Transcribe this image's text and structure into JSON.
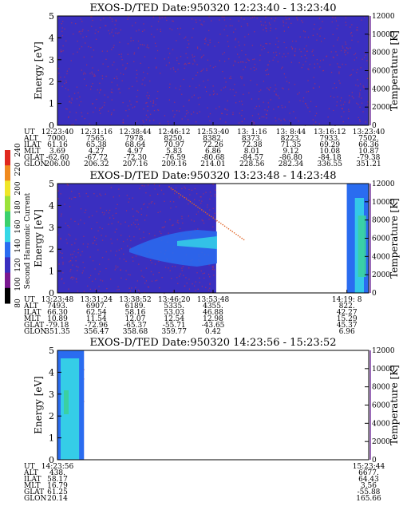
{
  "chart_data": [
    {
      "type": "heatmap",
      "title": "EXOS-D/TED   Date:950320   12:23:40 - 13:23:40",
      "ylabel": "Energy [eV]",
      "ylabel_right": "Temperature [K]",
      "ylim": [
        0,
        5
      ],
      "ylim_right": [
        0,
        12000
      ],
      "yticks": [
        "0",
        "1",
        "2",
        "3",
        "4",
        "5"
      ],
      "yticks_right": [
        "0",
        "2000",
        "4000",
        "6000",
        "8000",
        "10000",
        "12000"
      ],
      "coverage": [
        [
          0,
          1
        ]
      ],
      "table": {
        "rows": [
          "UT",
          "ALT",
          "ILAT",
          "MLT",
          "GLAT",
          "GLON"
        ],
        "columns": [
          [
            "12:23:40",
            "7000.",
            "61.16",
            "3.69",
            "-62.60",
            "206.00"
          ],
          [
            "12:31:16",
            "7565.",
            "65.38",
            "4.27",
            "-67.72",
            "206.32"
          ],
          [
            "12:38:44",
            "7978.",
            "68.64",
            "4.97",
            "-72.30",
            "207.16"
          ],
          [
            "12:46:12",
            "8250.",
            "70.97",
            "5.83",
            "-76.59",
            "209.16"
          ],
          [
            "12:53:40",
            "8382.",
            "72.26",
            "6.86",
            "-80.68",
            "214.01"
          ],
          [
            "13: 1:16",
            "8373.",
            "72.38",
            "8.01",
            "-84.57",
            "228.56"
          ],
          [
            "13: 8:44",
            "8223.",
            "71.35",
            "9.12",
            "-86.80",
            "282.34"
          ],
          [
            "13:16:12",
            "7933.",
            "69.29",
            "10.08",
            "-84.18",
            "336.55"
          ],
          [
            "13:23:40",
            "7502.",
            "66.36",
            "10.87",
            "-79.38",
            "351.21"
          ]
        ]
      }
    },
    {
      "type": "heatmap",
      "title": "EXOS-D/TED   Date:950320   13:23:48 - 14:23:48",
      "ylabel": "Energy [eV]",
      "ylabel_right": "Temperature [K]",
      "colorbar_label": "Second Harmonic Current",
      "colorbar_ticks": [
        "80",
        "100",
        "120",
        "140",
        "160",
        "180",
        "200",
        "220",
        "240"
      ],
      "ylim": [
        0,
        5
      ],
      "ylim_right": [
        0,
        12000
      ],
      "yticks": [
        "0",
        "1",
        "2",
        "3",
        "4",
        "5"
      ],
      "yticks_right": [
        "0",
        "2000",
        "4000",
        "6000",
        "8000",
        "10000",
        "12000"
      ],
      "coverage": [
        [
          0,
          0.51
        ],
        [
          0.93,
          1
        ]
      ],
      "table": {
        "rows": [
          "UT",
          "ALT",
          "ILAT",
          "MLT",
          "GLAT",
          "GLON"
        ],
        "columns": [
          [
            "13:23:48",
            "7493.",
            "66.30",
            "10.89",
            "-79.18",
            "351.35"
          ],
          [
            "13:31:24",
            "6907.",
            "62.54",
            "11.54",
            "-72.96",
            "356.47"
          ],
          [
            "13:38:52",
            "6189.",
            "58.16",
            "12.07",
            "-65.37",
            "358.68"
          ],
          [
            "13:46:20",
            "5335.",
            "53.03",
            "12.54",
            "-55.71",
            "359.77"
          ],
          [
            "13:53:48",
            "4355.",
            "46.88",
            "12.98",
            "-43.65",
            "0.42"
          ],
          [
            "14:19: 8",
            "822.",
            "42.27",
            "15.29",
            "45.37",
            "6.96"
          ]
        ]
      }
    },
    {
      "type": "heatmap",
      "title": "EXOS-D/TED   Date:950320   14:23:56 - 15:23:52",
      "ylabel": "Energy [eV]",
      "ylabel_right": "Temperature [K]",
      "ylim": [
        0,
        5
      ],
      "ylim_right": [
        0,
        12000
      ],
      "yticks": [
        "0",
        "1",
        "2",
        "3",
        "4",
        "5"
      ],
      "yticks_right": [
        "0",
        "2000",
        "4000",
        "6000",
        "8000",
        "10000",
        "12000"
      ],
      "coverage": [
        [
          0,
          0.085
        ]
      ],
      "table": {
        "rows": [
          "UT",
          "ALT",
          "ILAT",
          "MLT",
          "GLAT",
          "GLON"
        ],
        "columns": [
          [
            "14:23:56",
            "438.",
            "58.17",
            "16.79",
            "61.25",
            "20.14"
          ],
          [
            "15:23:44",
            "6677.",
            "64.43",
            "3.56",
            "-55.88",
            "165.66"
          ]
        ]
      }
    }
  ],
  "colors": {
    "background_fill": "#3a2fc0",
    "noise": "#b0305a",
    "band_blue": "#2a6cf0",
    "band_cyan": "#36d8e6",
    "band_green": "#3bd0a0",
    "colorbar": [
      "#000000",
      "#7a1890",
      "#3a2fc0",
      "#2a6cf0",
      "#36d8e6",
      "#3bd06c",
      "#9be23a",
      "#f0e628",
      "#f08a1e",
      "#e0281e"
    ]
  }
}
